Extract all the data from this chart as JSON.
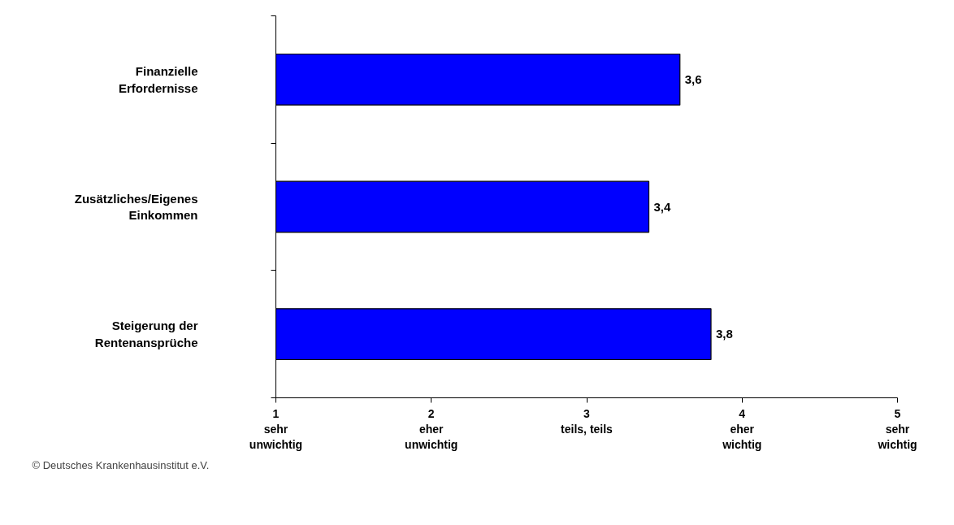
{
  "chart_data": {
    "type": "bar",
    "orientation": "horizontal",
    "categories": [
      "Finanzielle\nErfordernisse",
      "Zusätzliches/Eigenes\nEinkommen",
      "Steigerung der\nRentenansprüche"
    ],
    "values": [
      3.6,
      3.4,
      3.8
    ],
    "color": "#0000ff",
    "value_labels": [
      "3,6",
      "3,4",
      "3,8"
    ],
    "xlim": [
      1,
      5
    ],
    "xticks": [
      {
        "value": 1,
        "label": "1\nsehr\nunwichtig"
      },
      {
        "value": 2,
        "label": "2\neher\nunwichtig"
      },
      {
        "value": 3,
        "label": "3\nteils, teils"
      },
      {
        "value": 4,
        "label": "4\neher\nwichtig"
      },
      {
        "value": 5,
        "label": "5\nsehr\nwichtig"
      }
    ],
    "grid": false,
    "annotations": [
      "© Deutsches Krankenhausinstitut e.V."
    ]
  }
}
